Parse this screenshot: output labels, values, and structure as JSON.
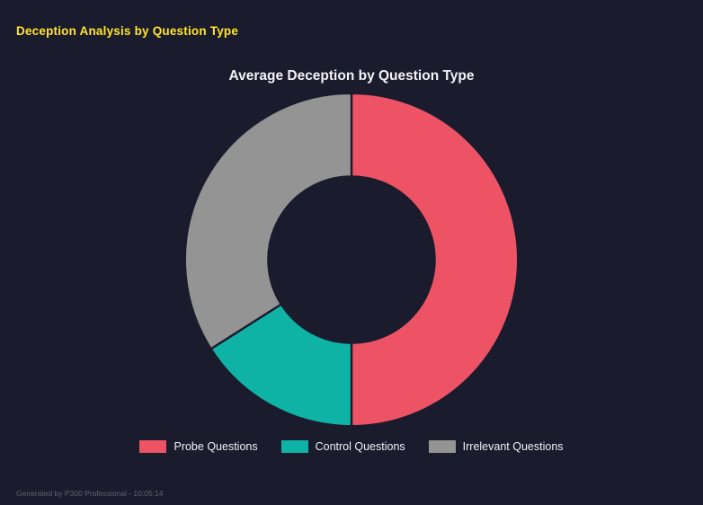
{
  "page": {
    "background": "#1a1b2c"
  },
  "header": {
    "title": "Deception Analysis by Question Type",
    "color": "#ffe431"
  },
  "chart_data": {
    "type": "pie",
    "subtype": "donut",
    "title": "Average Deception by Question Type",
    "labels": [
      "Probe Questions",
      "Control Questions",
      "Irrelevant Questions"
    ],
    "values": [
      50,
      16,
      34
    ],
    "values_estimated_from_angles": true,
    "colors": [
      "#ee5365",
      "#0fb3a5",
      "#949494"
    ],
    "inner_radius_ratio": 0.5,
    "start_angle_deg": 0,
    "direction": "clockwise",
    "legend_position": "bottom",
    "title_color": "#f2f2f6",
    "legend_text_color": "#f2f2f6"
  },
  "footer": {
    "text": "Generated by P300 Professional - 10:05:14"
  }
}
